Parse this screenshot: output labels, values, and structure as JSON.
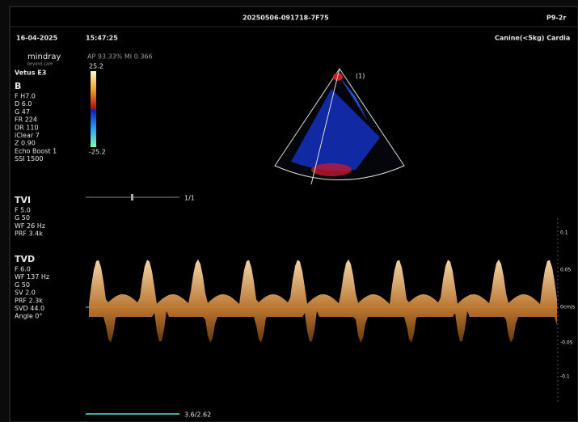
{
  "header": {
    "file_id": "20250506-091718-7F75",
    "probe": "P9-2r",
    "date": "16-04-2025",
    "time": "15:47:25",
    "preset": "Canine(<5kg) Cardia"
  },
  "brand": {
    "logo": "mindray",
    "tagline": "beyond care",
    "model": "Vetus E3"
  },
  "acoustic": "AP 93.33%  MI 0.366",
  "color_bar": {
    "max": "25.2",
    "min": "-25.2"
  },
  "sector_label": "(1)",
  "b_mode": {
    "title": "B",
    "params": [
      "F H7.0",
      "D 6.0",
      "G 47",
      "FR 224",
      "DR 110",
      "iClear 7",
      "Z 0.90",
      "Echo Boost 1",
      "SSI 1500"
    ]
  },
  "tvi": {
    "title": "TVI",
    "params": [
      "F 5.0",
      "G 50",
      "WF 26 Hz",
      "PRF 3.4k"
    ]
  },
  "tvd": {
    "title": "TVD",
    "params": [
      "F 6.0",
      "WF 137 Hz",
      "G 50",
      "SV 2.0",
      "PRF 2.3k",
      "SVD 44.0",
      "Angle  0°"
    ]
  },
  "slider_label": "1/1",
  "scale": [
    "0.1",
    "0.05",
    "0cm/s",
    "-0.05",
    "-0.1"
  ],
  "bottom_label": "3.6/2.62"
}
